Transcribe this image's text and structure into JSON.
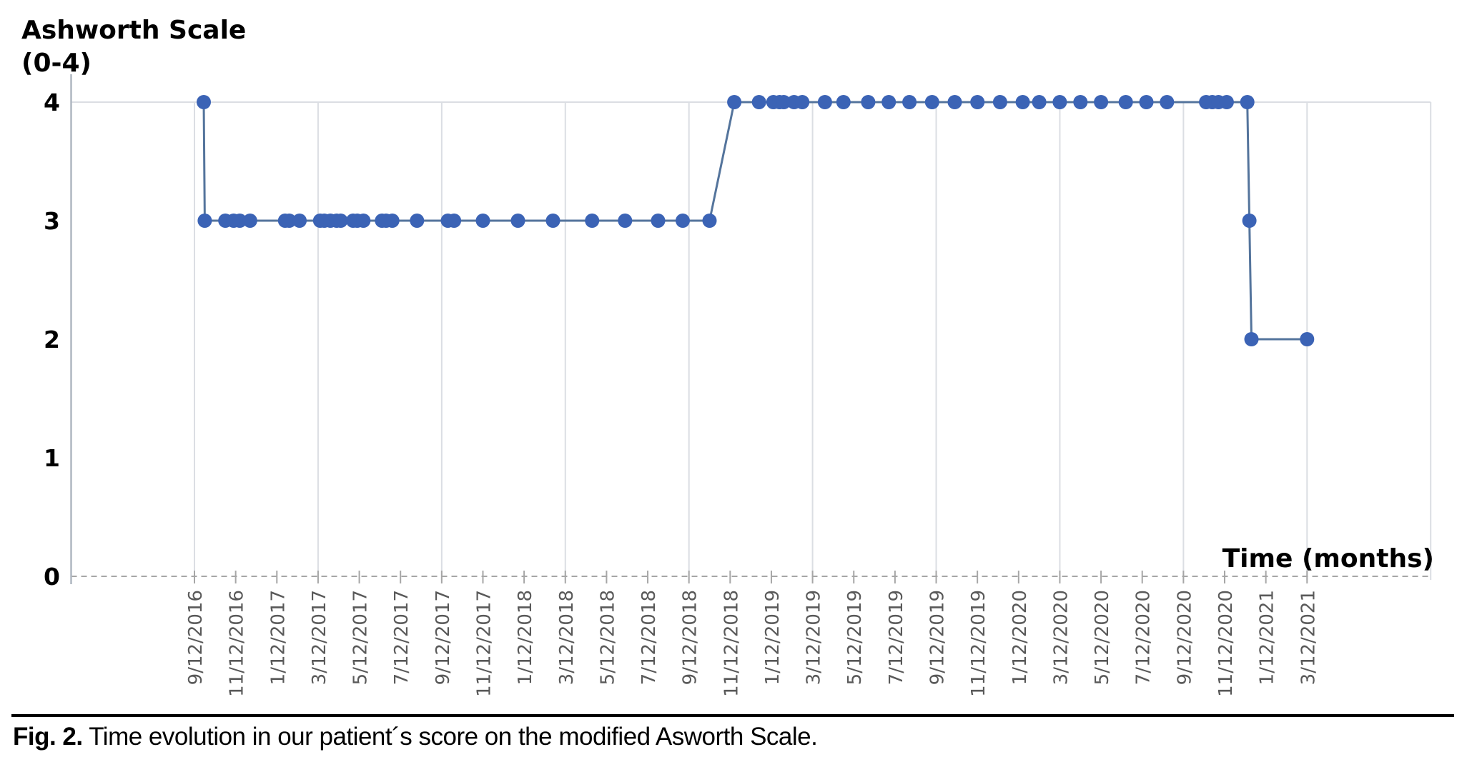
{
  "figure": {
    "caption_prefix": "Fig. 2.",
    "caption_text": " Time evolution in our patient´s score on the modified Asworth Scale."
  },
  "chart_data": {
    "type": "line",
    "title_line1": "Ashworth Scale",
    "title_line2": "(0-4)",
    "xlabel": "Time (months)",
    "ylabel": "Ashworth Scale (0-4)",
    "ylim": [
      0,
      4
    ],
    "yticks": [
      "0",
      "1",
      "2",
      "3",
      "4"
    ],
    "xtick_step_months": 2,
    "grid_months": [
      0,
      6,
      12,
      18,
      24,
      30,
      36,
      42,
      48,
      54,
      60
    ],
    "xtick_labels": [
      "9/12/2016",
      "11/12/2016",
      "1/12/2017",
      "3/12/2017",
      "5/12/2017",
      "7/12/2017",
      "9/12/2017",
      "11/12/2017",
      "1/12/2018",
      "3/12/2018",
      "5/12/2018",
      "7/12/2018",
      "9/12/2018",
      "11/12/2018",
      "1/12/2019",
      "3/12/2019",
      "5/12/2019",
      "7/12/2019",
      "9/12/2019",
      "11/12/2019",
      "1/12/2020",
      "3/12/2020",
      "5/12/2020",
      "7/12/2020",
      "9/12/2020",
      "11/12/2020",
      "1/12/2021",
      "3/12/2021"
    ],
    "series": [
      {
        "points_months_value": [
          [
            0.45,
            4
          ],
          [
            0.5,
            3
          ],
          [
            1.5,
            3
          ],
          [
            1.9,
            3
          ],
          [
            2.2,
            3
          ],
          [
            2.7,
            3
          ],
          [
            4.4,
            3
          ],
          [
            4.6,
            3
          ],
          [
            5.1,
            3
          ],
          [
            6.1,
            3
          ],
          [
            6.3,
            3
          ],
          [
            6.6,
            3
          ],
          [
            6.9,
            3
          ],
          [
            7.1,
            3
          ],
          [
            7.7,
            3
          ],
          [
            7.9,
            3
          ],
          [
            8.2,
            3
          ],
          [
            9.1,
            3
          ],
          [
            9.3,
            3
          ],
          [
            9.6,
            3
          ],
          [
            10.8,
            3
          ],
          [
            12.3,
            3
          ],
          [
            12.6,
            3
          ],
          [
            14.0,
            3
          ],
          [
            15.7,
            3
          ],
          [
            17.4,
            3
          ],
          [
            19.3,
            3
          ],
          [
            20.9,
            3
          ],
          [
            22.5,
            3
          ],
          [
            23.7,
            3
          ],
          [
            25.0,
            3
          ],
          [
            26.2,
            4
          ],
          [
            27.4,
            4
          ],
          [
            28.1,
            4
          ],
          [
            28.4,
            4
          ],
          [
            28.6,
            4
          ],
          [
            29.1,
            4
          ],
          [
            29.5,
            4
          ],
          [
            30.6,
            4
          ],
          [
            31.5,
            4
          ],
          [
            32.7,
            4
          ],
          [
            33.7,
            4
          ],
          [
            34.7,
            4
          ],
          [
            35.8,
            4
          ],
          [
            36.9,
            4
          ],
          [
            38.0,
            4
          ],
          [
            39.1,
            4
          ],
          [
            40.2,
            4
          ],
          [
            41.0,
            4
          ],
          [
            42.0,
            4
          ],
          [
            43.0,
            4
          ],
          [
            44.0,
            4
          ],
          [
            45.2,
            4
          ],
          [
            46.2,
            4
          ],
          [
            47.2,
            4
          ],
          [
            49.1,
            4
          ],
          [
            49.4,
            4
          ],
          [
            49.7,
            4
          ],
          [
            50.1,
            4
          ],
          [
            51.1,
            4
          ],
          [
            51.2,
            3
          ],
          [
            51.3,
            2
          ],
          [
            54.0,
            2
          ]
        ]
      }
    ],
    "legend": null,
    "grid": "vertical-every-6-months-plus-top-line",
    "baseline_style": "dashed"
  },
  "colors": {
    "marker": "#3B63B5",
    "line": "#54749C",
    "grid": "#DBDEE3",
    "axis": "#AFB7C1",
    "dash": "#A6A6A6",
    "tick_label": "#595959",
    "text": "#000000"
  }
}
